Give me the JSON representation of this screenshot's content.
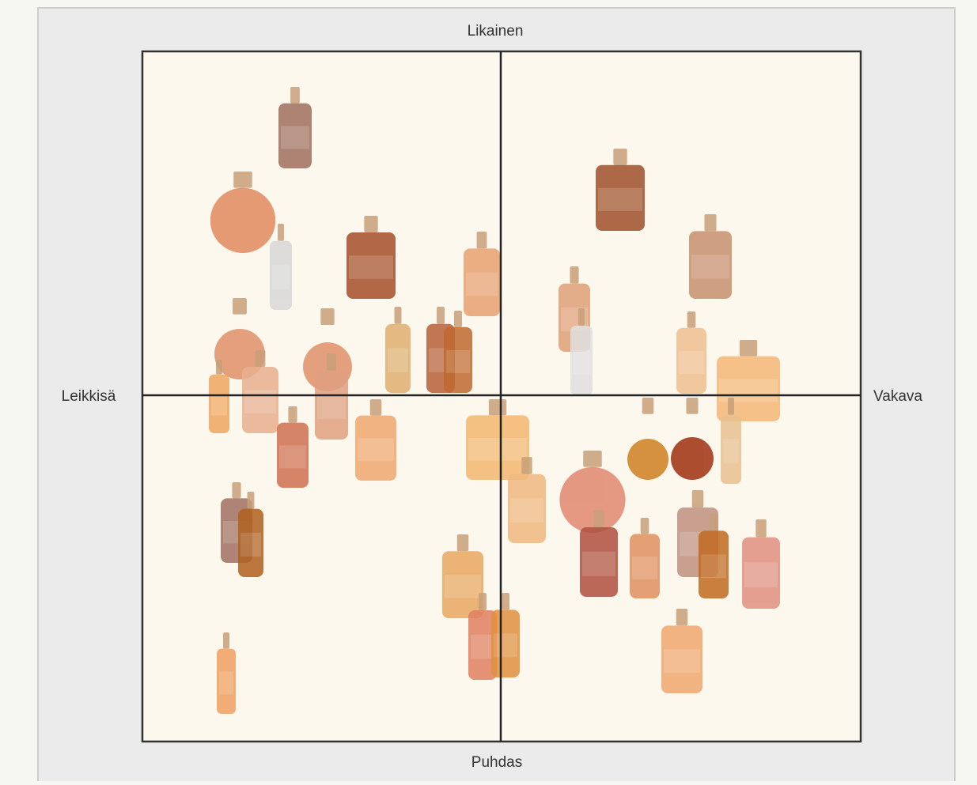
{
  "labels": {
    "top": "Likainen",
    "bottom": "Puhdas",
    "left": "Leikkisä",
    "right": "Vakava"
  }
}
